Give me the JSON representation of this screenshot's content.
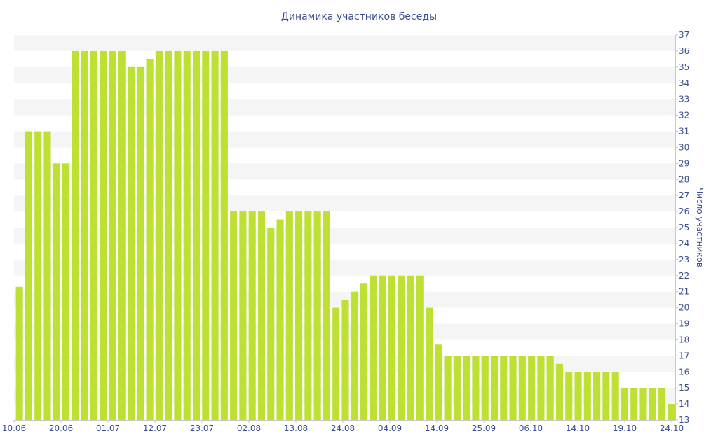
{
  "chart_data": {
    "type": "bar",
    "title": "Динамика участников беседы",
    "xlabel": "",
    "ylabel": "Число участников",
    "ylim": [
      13,
      37
    ],
    "y_ticks": [
      13,
      14,
      15,
      16,
      17,
      18,
      19,
      20,
      21,
      22,
      23,
      24,
      25,
      26,
      27,
      28,
      29,
      30,
      31,
      32,
      33,
      34,
      35,
      36,
      37
    ],
    "x_tick_labels": [
      "10.06",
      "20.06",
      "01.07",
      "12.07",
      "23.07",
      "02.08",
      "13.08",
      "24.08",
      "04.09",
      "14.09",
      "25.09",
      "06.10",
      "14.10",
      "19.10",
      "24.10"
    ],
    "values": [
      21.3,
      31,
      31,
      31,
      29,
      29,
      36,
      36,
      36,
      36,
      36,
      36,
      35,
      35,
      35.5,
      36,
      36,
      36,
      36,
      36,
      36,
      36,
      36,
      26,
      26,
      26,
      26,
      25,
      25.5,
      26,
      26,
      26,
      26,
      26,
      20,
      20.5,
      21,
      21.5,
      22,
      22,
      22,
      22,
      22,
      22,
      20,
      17.7,
      17,
      17,
      17,
      17,
      17,
      17,
      17,
      17,
      17,
      17,
      17,
      17,
      16.5,
      16,
      16,
      16,
      16,
      16,
      16,
      15,
      15,
      15,
      15,
      15,
      14
    ],
    "bar_color": "#bde032",
    "band_color": "#f5f5f5",
    "text_color": "#3b4f8f",
    "grid": "alternating horizontal bands",
    "y_axis_position": "right"
  }
}
